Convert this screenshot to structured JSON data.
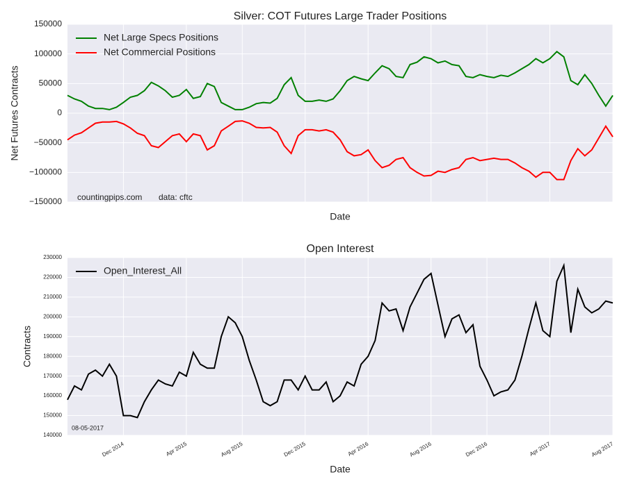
{
  "chart_data": [
    {
      "type": "line",
      "title": "Silver: COT Futures Large Trader Positions",
      "xlabel": "Date",
      "ylabel": "Net Futures Contracts",
      "annotations": [
        "countingpips.com",
        "data: cftc"
      ],
      "ylim": [
        -150000,
        150000
      ],
      "yticks": [
        {
          "value": -150000,
          "label": "−150000"
        },
        {
          "value": -100000,
          "label": "−100000"
        },
        {
          "value": -50000,
          "label": "−50000"
        },
        0,
        50000,
        100000,
        150000
      ],
      "grid": true,
      "legend": "upper left",
      "series": [
        {
          "name": "Net Large Specs Positions",
          "color": "#008000",
          "values": [
            30000,
            24000,
            20000,
            12000,
            8000,
            8000,
            6000,
            10000,
            18000,
            27000,
            30000,
            38000,
            52000,
            46000,
            38000,
            27000,
            30000,
            40000,
            25000,
            28000,
            50000,
            45000,
            18000,
            12000,
            6000,
            6000,
            10000,
            16000,
            18000,
            17000,
            25000,
            48000,
            60000,
            30000,
            20000,
            20000,
            22000,
            20000,
            24000,
            38000,
            55000,
            62000,
            58000,
            55000,
            68000,
            80000,
            75000,
            62000,
            60000,
            82000,
            86000,
            95000,
            92000,
            85000,
            88000,
            82000,
            80000,
            62000,
            60000,
            65000,
            62000,
            60000,
            64000,
            62000,
            68000,
            75000,
            82000,
            92000,
            85000,
            92000,
            104000,
            95000,
            55000,
            48000,
            65000,
            50000,
            30000,
            12000,
            30000
          ]
        },
        {
          "name": "Net Commercial Positions",
          "color": "#ff0000",
          "values": [
            -45000,
            -37000,
            -33000,
            -25000,
            -17000,
            -15000,
            -15000,
            -14000,
            -18000,
            -25000,
            -34000,
            -38000,
            -55000,
            -58000,
            -48000,
            -38000,
            -35000,
            -48000,
            -35000,
            -38000,
            -62000,
            -55000,
            -30000,
            -22000,
            -14000,
            -13000,
            -17000,
            -24000,
            -25000,
            -24000,
            -32000,
            -55000,
            -68000,
            -38000,
            -28000,
            -28000,
            -30000,
            -28000,
            -32000,
            -45000,
            -65000,
            -72000,
            -70000,
            -62000,
            -80000,
            -92000,
            -88000,
            -78000,
            -75000,
            -92000,
            -100000,
            -106000,
            -105000,
            -98000,
            -100000,
            -95000,
            -92000,
            -78000,
            -75000,
            -80000,
            -78000,
            -76000,
            -78000,
            -78000,
            -84000,
            -92000,
            -98000,
            -108000,
            -100000,
            -100000,
            -112000,
            -112000,
            -80000,
            -60000,
            -72000,
            -62000,
            -42000,
            -22000,
            -40000
          ]
        }
      ]
    },
    {
      "type": "line",
      "title": "Open Interest",
      "xlabel": "Date",
      "ylabel": "Contracts",
      "annotations": [
        "08-05-2017"
      ],
      "categories": [
        null,
        null,
        null,
        null,
        null,
        null,
        null,
        null,
        "Dec 2014",
        null,
        null,
        null,
        null,
        null,
        null,
        null,
        null,
        "Apr 2015",
        null,
        null,
        null,
        null,
        null,
        null,
        null,
        "Aug 2015",
        null,
        null,
        null,
        null,
        null,
        null,
        null,
        null,
        "Dec 2015",
        null,
        null,
        null,
        null,
        null,
        null,
        null,
        null,
        "Apr 2016",
        null,
        null,
        null,
        null,
        null,
        null,
        null,
        null,
        "Aug 2016",
        null,
        null,
        null,
        null,
        null,
        null,
        null,
        "Dec 2016",
        null,
        null,
        null,
        null,
        null,
        null,
        null,
        null,
        "Apr 2017",
        null,
        null,
        null,
        null,
        null,
        null,
        null,
        null,
        "Aug 2017"
      ],
      "ylim": [
        140000,
        230000
      ],
      "yticks": [
        140000,
        150000,
        160000,
        170000,
        180000,
        190000,
        200000,
        210000,
        220000,
        230000
      ],
      "grid": true,
      "legend": "upper left",
      "series": [
        {
          "name": "Open_Interest_All",
          "color": "#000000",
          "values": [
            158000,
            165000,
            163000,
            171000,
            173000,
            170000,
            176000,
            170000,
            150000,
            150000,
            149000,
            157000,
            163000,
            168000,
            166000,
            165000,
            172000,
            170000,
            182000,
            176000,
            174000,
            174000,
            190000,
            200000,
            197000,
            190000,
            178000,
            168000,
            157000,
            155000,
            157000,
            168000,
            168000,
            163000,
            170000,
            163000,
            163000,
            167000,
            157000,
            160000,
            167000,
            165000,
            176000,
            180000,
            188000,
            207000,
            203000,
            204000,
            193000,
            205000,
            212000,
            219000,
            222000,
            206000,
            190000,
            199000,
            201000,
            192000,
            196000,
            175000,
            168000,
            160000,
            162000,
            163000,
            168000,
            180000,
            194000,
            207000,
            193000,
            190000,
            218000,
            226000,
            192000,
            214000,
            205000,
            202000,
            204000,
            208000,
            207000
          ]
        }
      ]
    }
  ]
}
